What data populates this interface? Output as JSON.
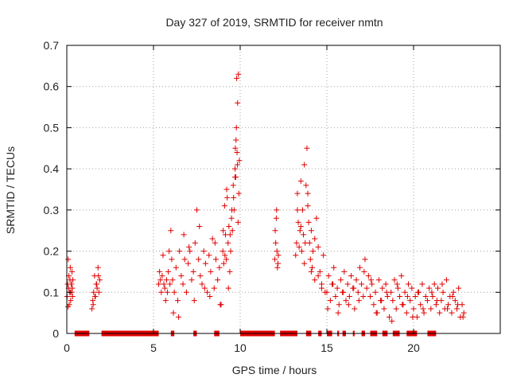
{
  "chart_data": {
    "type": "scatter",
    "title": "Day 327 of 2019, SRMTID for receiver nmtn",
    "xlabel": "GPS time / hours",
    "ylabel": "SRMTID / TECUs",
    "xlim": [
      0,
      25
    ],
    "ylim": [
      0,
      0.7
    ],
    "x_ticks": [
      0,
      5,
      10,
      15,
      20
    ],
    "x_tick_labels": [
      "0",
      "5",
      "10",
      "15",
      "20"
    ],
    "y_ticks": [
      0,
      0.1,
      0.2,
      0.3,
      0.4,
      0.5,
      0.6,
      0.7
    ],
    "y_tick_labels": [
      "0",
      "0.1",
      "0.2",
      "0.3",
      "0.4",
      "0.5",
      "0.6",
      "0.7"
    ],
    "grid": true,
    "marker": "+",
    "color": "#e00000",
    "series": [
      {
        "name": "SRMTID",
        "x": [
          0.02,
          0.05,
          0.08,
          0.1,
          0.12,
          0.15,
          0.18,
          0.2,
          0.22,
          0.25,
          0.28,
          0.3,
          0.32,
          0.35,
          0.07,
          0.14,
          0.21,
          0.27,
          0.33,
          1.45,
          1.5,
          1.55,
          1.6,
          1.65,
          1.7,
          1.75,
          1.8,
          1.85,
          1.9,
          1.52,
          1.62,
          1.72,
          1.82,
          5.3,
          5.35,
          5.4,
          5.45,
          5.5,
          5.55,
          5.6,
          5.65,
          5.7,
          5.75,
          5.8,
          5.85,
          5.9,
          5.95,
          6.0,
          6.05,
          6.1,
          6.2,
          6.3,
          6.4,
          6.5,
          6.6,
          6.7,
          6.8,
          6.9,
          7.0,
          7.1,
          7.2,
          7.3,
          7.4,
          7.5,
          7.6,
          7.7,
          7.8,
          7.9,
          8.0,
          8.1,
          8.2,
          8.3,
          8.4,
          8.5,
          8.6,
          8.7,
          8.8,
          8.9,
          6.15,
          6.45,
          6.75,
          7.05,
          7.35,
          7.65,
          7.95,
          8.25,
          8.55,
          8.85,
          9.0,
          9.05,
          9.1,
          9.15,
          9.2,
          9.25,
          9.3,
          9.35,
          9.4,
          9.45,
          9.5,
          9.55,
          9.6,
          9.65,
          9.7,
          9.72,
          9.75,
          9.78,
          9.8,
          9.82,
          9.85,
          9.88,
          9.9,
          9.92,
          9.95,
          9.02,
          9.12,
          9.22,
          9.32,
          9.42,
          9.52,
          9.62,
          9.7,
          9.76,
          9.84,
          12.0,
          12.05,
          12.1,
          12.15,
          12.2,
          12.02,
          12.08,
          12.12,
          12.18,
          13.2,
          13.25,
          13.3,
          13.35,
          13.4,
          13.45,
          13.5,
          13.55,
          13.6,
          13.65,
          13.7,
          13.75,
          13.8,
          13.85,
          13.9,
          13.95,
          14.0,
          14.05,
          14.1,
          14.15,
          14.2,
          14.3,
          14.4,
          14.5,
          14.6,
          14.7,
          14.8,
          14.9,
          13.3,
          13.5,
          13.7,
          13.9,
          14.1,
          14.3,
          14.5,
          14.7,
          15.0,
          15.1,
          15.2,
          15.3,
          15.4,
          15.5,
          15.6,
          15.7,
          15.8,
          15.9,
          16.0,
          16.1,
          16.2,
          16.3,
          16.4,
          16.5,
          16.6,
          16.7,
          16.8,
          16.9,
          17.0,
          17.1,
          17.2,
          17.3,
          17.4,
          15.05,
          15.35,
          15.65,
          15.95,
          16.25,
          16.55,
          16.85,
          17.15,
          17.5,
          17.6,
          17.7,
          17.8,
          17.9,
          18.0,
          18.1,
          18.2,
          18.3,
          18.4,
          18.5,
          18.6,
          18.7,
          18.8,
          18.9,
          19.0,
          19.1,
          19.2,
          19.3,
          19.4,
          19.5,
          19.6,
          19.7,
          19.8,
          19.9,
          20.0,
          20.1,
          20.2,
          20.3,
          20.4,
          20.5,
          20.6,
          20.7,
          20.8,
          20.9,
          17.55,
          17.85,
          18.15,
          18.45,
          18.75,
          19.05,
          19.35,
          19.65,
          19.95,
          20.25,
          20.55,
          21.0,
          21.1,
          21.2,
          21.3,
          21.4,
          21.5,
          21.6,
          21.7,
          21.8,
          21.9,
          22.0,
          22.1,
          22.2,
          22.3,
          22.4,
          22.5,
          22.6,
          22.7,
          22.8,
          22.9,
          21.05,
          21.35,
          21.65,
          21.95,
          22.25,
          22.55,
          22.85
        ],
        "y": [
          0.09,
          0.12,
          0.18,
          0.11,
          0.14,
          0.1,
          0.13,
          0.16,
          0.08,
          0.12,
          0.1,
          0.15,
          0.11,
          0.13,
          0.065,
          0.07,
          0.1,
          0.12,
          0.09,
          0.06,
          0.08,
          0.1,
          0.14,
          0.09,
          0.12,
          0.11,
          0.16,
          0.1,
          0.13,
          0.07,
          0.09,
          0.12,
          0.14,
          0.12,
          0.15,
          0.13,
          0.1,
          0.14,
          0.19,
          0.12,
          0.11,
          0.08,
          0.13,
          0.1,
          0.15,
          0.2,
          0.12,
          0.25,
          0.18,
          0.13,
          0.1,
          0.16,
          0.08,
          0.2,
          0.14,
          0.12,
          0.18,
          0.1,
          0.17,
          0.2,
          0.13,
          0.15,
          0.22,
          0.3,
          0.18,
          0.14,
          0.12,
          0.2,
          0.17,
          0.1,
          0.19,
          0.15,
          0.23,
          0.11,
          0.18,
          0.13,
          0.16,
          0.07,
          0.05,
          0.04,
          0.24,
          0.21,
          0.08,
          0.26,
          0.11,
          0.09,
          0.22,
          0.07,
          0.2,
          0.17,
          0.31,
          0.24,
          0.18,
          0.33,
          0.22,
          0.26,
          0.15,
          0.2,
          0.28,
          0.25,
          0.36,
          0.3,
          0.4,
          0.45,
          0.38,
          0.5,
          0.62,
          0.44,
          0.56,
          0.27,
          0.63,
          0.34,
          0.42,
          0.25,
          0.19,
          0.35,
          0.11,
          0.24,
          0.3,
          0.33,
          0.38,
          0.47,
          0.41,
          0.18,
          0.22,
          0.3,
          0.16,
          0.19,
          0.25,
          0.28,
          0.2,
          0.17,
          0.19,
          0.22,
          0.34,
          0.27,
          0.21,
          0.25,
          0.37,
          0.2,
          0.3,
          0.24,
          0.17,
          0.22,
          0.36,
          0.45,
          0.31,
          0.27,
          0.22,
          0.18,
          0.25,
          0.16,
          0.2,
          0.13,
          0.28,
          0.21,
          0.15,
          0.12,
          0.19,
          0.1,
          0.3,
          0.26,
          0.41,
          0.34,
          0.15,
          0.23,
          0.14,
          0.11,
          0.1,
          0.14,
          0.08,
          0.12,
          0.16,
          0.09,
          0.11,
          0.07,
          0.13,
          0.1,
          0.15,
          0.08,
          0.12,
          0.09,
          0.14,
          0.11,
          0.06,
          0.13,
          0.1,
          0.16,
          0.12,
          0.09,
          0.18,
          0.11,
          0.14,
          0.06,
          0.12,
          0.05,
          0.1,
          0.07,
          0.11,
          0.08,
          0.15,
          0.09,
          0.12,
          0.07,
          0.1,
          0.05,
          0.13,
          0.08,
          0.11,
          0.06,
          0.12,
          0.09,
          0.04,
          0.1,
          0.08,
          0.13,
          0.06,
          0.11,
          0.09,
          0.14,
          0.07,
          0.1,
          0.05,
          0.12,
          0.08,
          0.11,
          0.06,
          0.09,
          0.04,
          0.1,
          0.07,
          0.12,
          0.05,
          0.09,
          0.08,
          0.11,
          0.13,
          0.05,
          0.08,
          0.1,
          0.03,
          0.12,
          0.07,
          0.09,
          0.04,
          0.1,
          0.06,
          0.06,
          0.09,
          0.12,
          0.07,
          0.11,
          0.05,
          0.08,
          0.1,
          0.06,
          0.13,
          0.07,
          0.09,
          0.05,
          0.1,
          0.08,
          0.06,
          0.11,
          0.04,
          0.07,
          0.05,
          0.1,
          0.08,
          0.12,
          0.06,
          0.09,
          0.07,
          0.04
        ]
      }
    ],
    "zero_value_segments": [
      [
        0.45,
        1.3
      ],
      [
        2.0,
        5.3
      ],
      [
        6.0,
        6.2
      ],
      [
        7.3,
        7.5
      ],
      [
        8.5,
        8.8
      ],
      [
        10.0,
        12.0
      ],
      [
        12.3,
        13.3
      ],
      [
        13.8,
        14.1
      ],
      [
        14.5,
        14.7
      ],
      [
        15.0,
        15.3
      ],
      [
        15.6,
        15.7
      ],
      [
        15.9,
        16.1
      ],
      [
        16.5,
        16.6
      ],
      [
        17.0,
        17.2
      ],
      [
        17.5,
        17.9
      ],
      [
        18.2,
        18.5
      ],
      [
        18.8,
        19.2
      ],
      [
        19.6,
        20.2
      ],
      [
        20.8,
        21.3
      ]
    ]
  }
}
